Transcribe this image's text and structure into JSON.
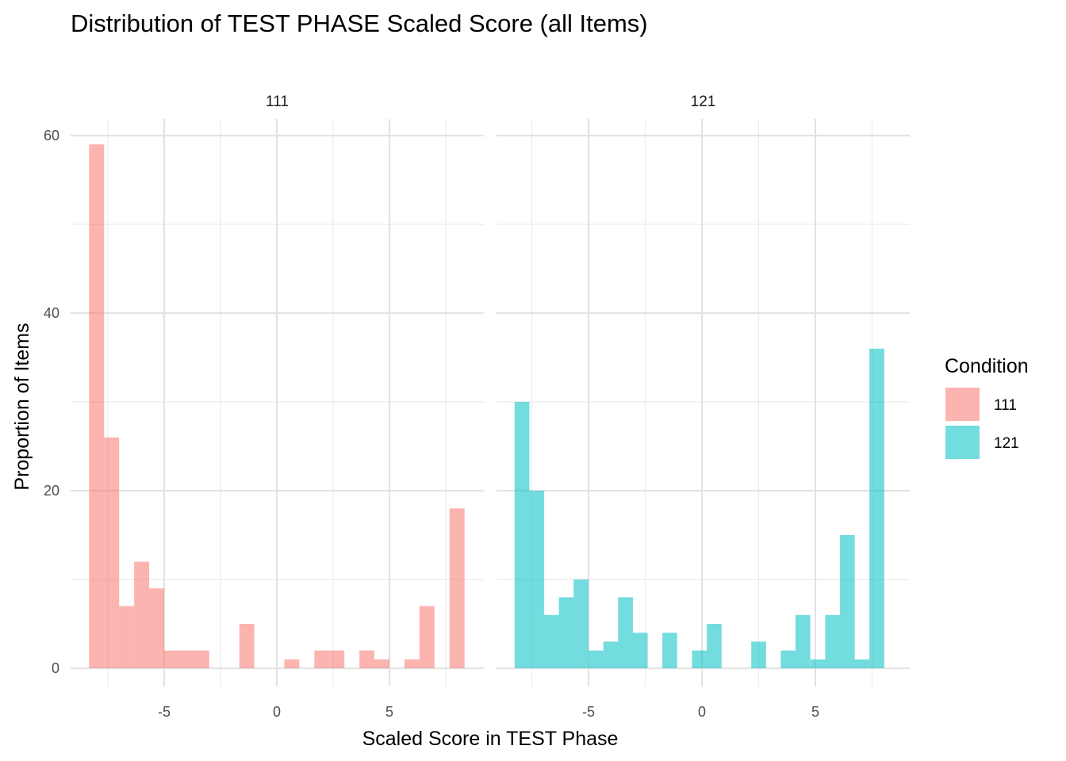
{
  "chart_data": {
    "type": "bar",
    "title": "Distribution of TEST PHASE Scaled Score (all Items)",
    "xlabel": "Scaled Score in TEST Phase",
    "ylabel": "Proportion of Items",
    "xlim": [
      -9,
      9.25
    ],
    "ylim": [
      0,
      61
    ],
    "x_ticks": [
      -5,
      0,
      5
    ],
    "y_ticks": [
      0,
      20,
      40,
      60
    ],
    "grid": true,
    "legend": {
      "title": "Condition",
      "position": "right",
      "items": [
        {
          "label": "111",
          "color": "#F8766D"
        },
        {
          "label": "121",
          "color": "#00BFC4"
        }
      ]
    },
    "panels": [
      {
        "strip": "111",
        "condition": "111",
        "color": "#F8766D",
        "bins": [
          {
            "x": -8.0,
            "y": 59
          },
          {
            "x": -7.333,
            "y": 26
          },
          {
            "x": -6.667,
            "y": 7
          },
          {
            "x": -6.0,
            "y": 12
          },
          {
            "x": -5.333,
            "y": 9
          },
          {
            "x": -4.667,
            "y": 2
          },
          {
            "x": -4.0,
            "y": 2
          },
          {
            "x": -3.333,
            "y": 2
          },
          {
            "x": -1.333,
            "y": 5
          },
          {
            "x": 0.667,
            "y": 1
          },
          {
            "x": 2.0,
            "y": 2
          },
          {
            "x": 2.667,
            "y": 2
          },
          {
            "x": 4.0,
            "y": 2
          },
          {
            "x": 4.667,
            "y": 1
          },
          {
            "x": 6.0,
            "y": 1
          },
          {
            "x": 6.667,
            "y": 7
          },
          {
            "x": 8.0,
            "y": 18
          }
        ]
      },
      {
        "strip": "121",
        "condition": "121",
        "color": "#00BFC4",
        "bins": [
          {
            "x": -7.93,
            "y": 30
          },
          {
            "x": -7.28,
            "y": 20
          },
          {
            "x": -6.63,
            "y": 6
          },
          {
            "x": -5.98,
            "y": 8
          },
          {
            "x": -5.33,
            "y": 10
          },
          {
            "x": -4.67,
            "y": 2
          },
          {
            "x": -4.02,
            "y": 3
          },
          {
            "x": -3.37,
            "y": 8
          },
          {
            "x": -2.72,
            "y": 4
          },
          {
            "x": -1.42,
            "y": 4
          },
          {
            "x": -0.11,
            "y": 2
          },
          {
            "x": 0.54,
            "y": 5
          },
          {
            "x": 2.5,
            "y": 3
          },
          {
            "x": 3.8,
            "y": 2
          },
          {
            "x": 4.45,
            "y": 6
          },
          {
            "x": 5.11,
            "y": 1
          },
          {
            "x": 5.76,
            "y": 6
          },
          {
            "x": 6.41,
            "y": 15
          },
          {
            "x": 7.06,
            "y": 1
          },
          {
            "x": 7.71,
            "y": 36
          }
        ]
      }
    ]
  }
}
